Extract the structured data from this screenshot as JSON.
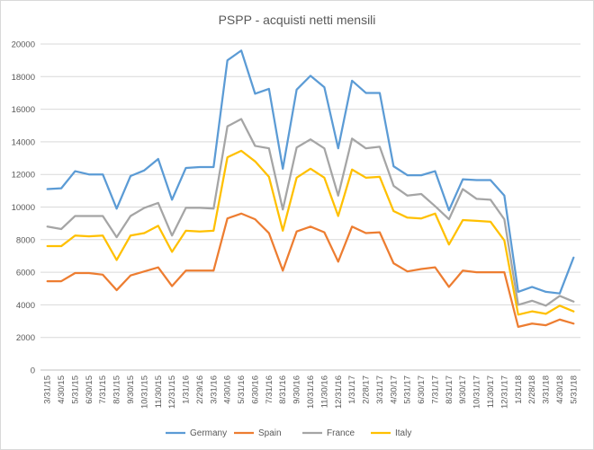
{
  "chart_data": {
    "type": "line",
    "title": "PSPP - acquisti netti mensili",
    "xlabel": "",
    "ylabel": "",
    "ylim": [
      0,
      20000
    ],
    "yticks": [
      0,
      2000,
      4000,
      6000,
      8000,
      10000,
      12000,
      14000,
      16000,
      18000,
      20000
    ],
    "grid": true,
    "legend_position": "bottom",
    "categories": [
      "3/31/15",
      "4/30/15",
      "5/31/15",
      "6/30/15",
      "7/31/15",
      "8/31/15",
      "9/30/15",
      "10/31/15",
      "11/30/15",
      "12/31/15",
      "1/31/16",
      "2/29/16",
      "3/31/16",
      "4/30/16",
      "5/31/16",
      "6/30/16",
      "7/31/16",
      "8/31/16",
      "9/30/16",
      "10/31/16",
      "11/30/16",
      "12/31/16",
      "1/31/17",
      "2/28/17",
      "3/31/17",
      "4/30/17",
      "5/31/17",
      "6/30/17",
      "7/31/17",
      "8/31/17",
      "9/30/17",
      "10/31/17",
      "11/30/17",
      "12/31/17",
      "1/31/18",
      "2/28/18",
      "3/31/18",
      "4/30/18",
      "5/31/18"
    ],
    "series": [
      {
        "name": "Germany",
        "color": "#5B9BD5",
        "values": [
          11100,
          11150,
          12200,
          12000,
          12000,
          9900,
          11900,
          12250,
          12950,
          10450,
          12400,
          12450,
          12450,
          19000,
          19600,
          16950,
          17250,
          12350,
          17200,
          18050,
          17350,
          13600,
          17750,
          17000,
          17000,
          12500,
          11950,
          11950,
          12200,
          9800,
          11700,
          11650,
          11650,
          10700,
          4800,
          5100,
          4800,
          4700,
          6900
        ]
      },
      {
        "name": "Spain",
        "color": "#ED7D31",
        "values": [
          5450,
          5450,
          5950,
          5950,
          5850,
          4900,
          5800,
          6050,
          6300,
          5150,
          6100,
          6100,
          6100,
          9300,
          9600,
          9250,
          8400,
          6100,
          8500,
          8800,
          8450,
          6650,
          8800,
          8400,
          8450,
          6550,
          6050,
          6200,
          6300,
          5100,
          6100,
          6000,
          6000,
          6000,
          2650,
          2850,
          2750,
          3100,
          2850
        ]
      },
      {
        "name": "France",
        "color": "#A5A5A5",
        "values": [
          8800,
          8650,
          9450,
          9450,
          9450,
          8150,
          9450,
          9950,
          10250,
          8250,
          9950,
          9950,
          9900,
          14950,
          15400,
          13750,
          13600,
          9850,
          13650,
          14150,
          13600,
          10700,
          14200,
          13600,
          13700,
          11300,
          10700,
          10800,
          10050,
          9250,
          11100,
          10500,
          10450,
          9250,
          4000,
          4250,
          3950,
          4550,
          4200
        ]
      },
      {
        "name": "Italy",
        "color": "#FFC000",
        "values": [
          7600,
          7600,
          8250,
          8200,
          8250,
          6750,
          8250,
          8400,
          8850,
          7250,
          8550,
          8500,
          8550,
          13050,
          13450,
          12800,
          11850,
          8550,
          11800,
          12350,
          11800,
          9450,
          12300,
          11800,
          11850,
          9750,
          9350,
          9300,
          9600,
          7700,
          9200,
          9150,
          9100,
          7950,
          3400,
          3600,
          3450,
          3950,
          3600
        ]
      }
    ]
  }
}
